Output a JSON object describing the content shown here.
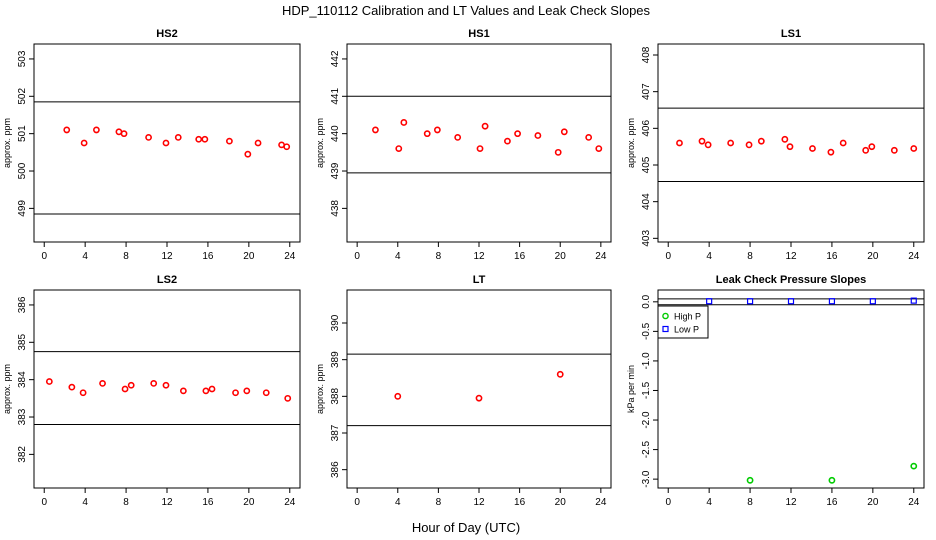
{
  "figure": {
    "title": "HDP_110112  Calibration and LT Values and Leak Check Slopes",
    "xlabel": "Hour of Day (UTC)"
  },
  "chart_data": [
    {
      "type": "scatter",
      "title": "HS2",
      "ylabel": "approx. ppm",
      "xlim": [
        -1,
        25
      ],
      "ylim": [
        498.1,
        503.4
      ],
      "xticks": [
        0,
        4,
        8,
        12,
        16,
        20,
        24
      ],
      "yticks": [
        499,
        500,
        501,
        502,
        503
      ],
      "hlines": [
        498.85,
        501.85
      ],
      "series": [
        {
          "marker": "circle",
          "color": "#ff0000",
          "x": [
            2.2,
            3.9,
            5.1,
            7.3,
            7.8,
            10.2,
            11.9,
            13.1,
            15.1,
            15.7,
            18.1,
            19.9,
            20.9,
            23.2,
            23.7
          ],
          "y": [
            501.1,
            500.75,
            501.1,
            501.05,
            501.0,
            500.9,
            500.75,
            500.9,
            500.85,
            500.85,
            500.8,
            500.45,
            500.75,
            500.7,
            500.65
          ]
        }
      ]
    },
    {
      "type": "scatter",
      "title": "HS1",
      "ylabel": "approx. ppm",
      "xlim": [
        -1,
        25
      ],
      "ylim": [
        437.1,
        442.4
      ],
      "xticks": [
        0,
        4,
        8,
        12,
        16,
        20,
        24
      ],
      "yticks": [
        438,
        439,
        440,
        441,
        442
      ],
      "hlines": [
        438.95,
        441.0
      ],
      "series": [
        {
          "marker": "circle",
          "color": "#ff0000",
          "x": [
            1.8,
            4.1,
            4.6,
            6.9,
            7.9,
            9.9,
            12.1,
            12.6,
            14.8,
            15.8,
            17.8,
            19.8,
            20.4,
            22.8,
            23.8
          ],
          "y": [
            440.1,
            439.6,
            440.3,
            440.0,
            440.1,
            439.9,
            439.6,
            440.2,
            439.8,
            440.0,
            439.95,
            439.5,
            440.05,
            439.9,
            439.6
          ]
        }
      ]
    },
    {
      "type": "scatter",
      "title": "LS1",
      "ylabel": "approx. ppm",
      "xlim": [
        -1,
        25
      ],
      "ylim": [
        402.9,
        408.3
      ],
      "xticks": [
        0,
        4,
        8,
        12,
        16,
        20,
        24
      ],
      "yticks": [
        403,
        404,
        405,
        406,
        407,
        408
      ],
      "hlines": [
        404.55,
        406.55
      ],
      "series": [
        {
          "marker": "circle",
          "color": "#ff0000",
          "x": [
            1.1,
            3.3,
            3.9,
            6.1,
            7.9,
            9.1,
            11.4,
            11.9,
            14.1,
            15.9,
            17.1,
            19.3,
            19.9,
            22.1,
            24.0
          ],
          "y": [
            405.6,
            405.65,
            405.55,
            405.6,
            405.55,
            405.65,
            405.7,
            405.5,
            405.45,
            405.35,
            405.6,
            405.4,
            405.5,
            405.4,
            405.45
          ]
        }
      ]
    },
    {
      "type": "scatter",
      "title": "LS2",
      "ylabel": "approx. ppm",
      "xlim": [
        -1,
        25
      ],
      "ylim": [
        381.1,
        386.4
      ],
      "xticks": [
        0,
        4,
        8,
        12,
        16,
        20,
        24
      ],
      "yticks": [
        382,
        383,
        384,
        385,
        386
      ],
      "hlines": [
        382.8,
        384.75
      ],
      "series": [
        {
          "marker": "circle",
          "color": "#ff0000",
          "x": [
            0.5,
            2.7,
            3.8,
            5.7,
            7.9,
            8.5,
            10.7,
            11.9,
            13.6,
            15.8,
            16.4,
            18.7,
            19.8,
            21.7,
            23.8
          ],
          "y": [
            383.95,
            383.8,
            383.65,
            383.9,
            383.75,
            383.85,
            383.9,
            383.85,
            383.7,
            383.7,
            383.75,
            383.65,
            383.7,
            383.65,
            383.5
          ]
        }
      ]
    },
    {
      "type": "scatter",
      "title": "LT",
      "ylabel": "approx. ppm",
      "xlim": [
        -1,
        25
      ],
      "ylim": [
        385.5,
        390.9
      ],
      "xticks": [
        0,
        4,
        8,
        12,
        16,
        20,
        24
      ],
      "yticks": [
        386,
        387,
        388,
        389,
        390
      ],
      "hlines": [
        387.2,
        389.15
      ],
      "series": [
        {
          "marker": "circle",
          "color": "#ff0000",
          "x": [
            4.0,
            12.0,
            20.0
          ],
          "y": [
            388.0,
            387.95,
            388.6
          ]
        }
      ]
    },
    {
      "type": "scatter",
      "title": "Leak Check Pressure Slopes",
      "ylabel": "kPa per min",
      "xlim": [
        -1,
        25
      ],
      "ylim": [
        -3.15,
        0.2
      ],
      "xticks": [
        0,
        4,
        8,
        12,
        16,
        20,
        24
      ],
      "yticks": [
        -3.0,
        -2.5,
        -2.0,
        -1.5,
        -1.0,
        -0.5,
        0.0
      ],
      "ytick_labels": [
        "-3.0",
        "-2.5",
        "-2.0",
        "-1.5",
        "-1.0",
        "-0.5",
        "0.0"
      ],
      "hlines": [
        -0.05,
        0.05
      ],
      "legend": {
        "position": "top-left",
        "entries": [
          "High P",
          "Low P"
        ]
      },
      "series": [
        {
          "name": "High P",
          "marker": "circle",
          "color": "#00cc00",
          "x": [
            8,
            16,
            24
          ],
          "y": [
            -3.02,
            -3.02,
            -2.78
          ]
        },
        {
          "name": "Low P",
          "marker": "square",
          "color": "#0000ff",
          "x": [
            4,
            8,
            12,
            16,
            20,
            24
          ],
          "y": [
            0.01,
            0.01,
            0.01,
            0.01,
            0.01,
            0.02
          ]
        }
      ]
    }
  ]
}
